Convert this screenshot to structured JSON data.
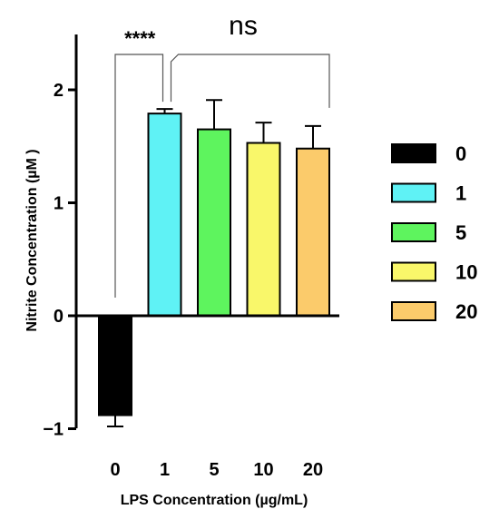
{
  "chart_data": {
    "type": "bar",
    "title": "",
    "xlabel": "LPS Concentration (µg/mL)",
    "ylabel": "Nitrite Concentration (µM )",
    "ylim": [
      -1,
      2.5
    ],
    "yticks": [
      "−1",
      "0",
      "1",
      "2"
    ],
    "categories": [
      "0",
      "1",
      "5",
      "10",
      "20"
    ],
    "values": [
      -0.88,
      1.79,
      1.65,
      1.53,
      1.48
    ],
    "errors": [
      0.1,
      0.04,
      0.26,
      0.18,
      0.2
    ],
    "colors": [
      "#000000",
      "#5ff2f5",
      "#5ef45e",
      "#f9f76a",
      "#fbcb6b"
    ],
    "grid": false,
    "legend": {
      "placement": "right",
      "entries": [
        "0",
        "1",
        "5",
        "10",
        "20"
      ]
    },
    "annotations": [
      {
        "text": "****",
        "from": "0",
        "to": "1"
      },
      {
        "text": "ns",
        "from": "1",
        "to": "20"
      }
    ]
  }
}
